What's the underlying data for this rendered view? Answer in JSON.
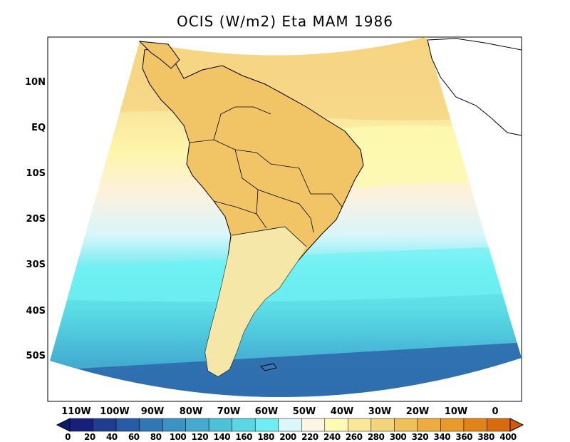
{
  "title": "OCIS (W/m2) Eta MAM 1986",
  "lat_labels": [
    "10N",
    "EQ",
    "10S",
    "20S",
    "30S",
    "40S",
    "50S"
  ],
  "lon_labels": [
    "110W",
    "100W",
    "90W",
    "80W",
    "70W",
    "60W",
    "50W",
    "40W",
    "30W",
    "20W",
    "10W",
    "0"
  ],
  "colorbar": {
    "labels": [
      "0",
      "20",
      "40",
      "60",
      "80",
      "100",
      "120",
      "140",
      "160",
      "180",
      "200",
      "220",
      "240",
      "260",
      "280",
      "300",
      "320",
      "340",
      "360",
      "380",
      "400"
    ],
    "colors": [
      "#16207a",
      "#1f3e92",
      "#275ba6",
      "#2f78b6",
      "#3b92c4",
      "#45a9d0",
      "#4fc0da",
      "#5bd6e4",
      "#6eeef2",
      "#d8f8fa",
      "#fdf5e4",
      "#fdfab4",
      "#f9e79a",
      "#f4d47a",
      "#efc05a",
      "#ecad3e",
      "#e99a28",
      "#e08418",
      "#d86a10"
    ]
  },
  "map": {
    "region": "South America",
    "variable": "OCIS",
    "units": "W/m2",
    "model": "Eta",
    "season": "MAM",
    "year": "1986"
  }
}
